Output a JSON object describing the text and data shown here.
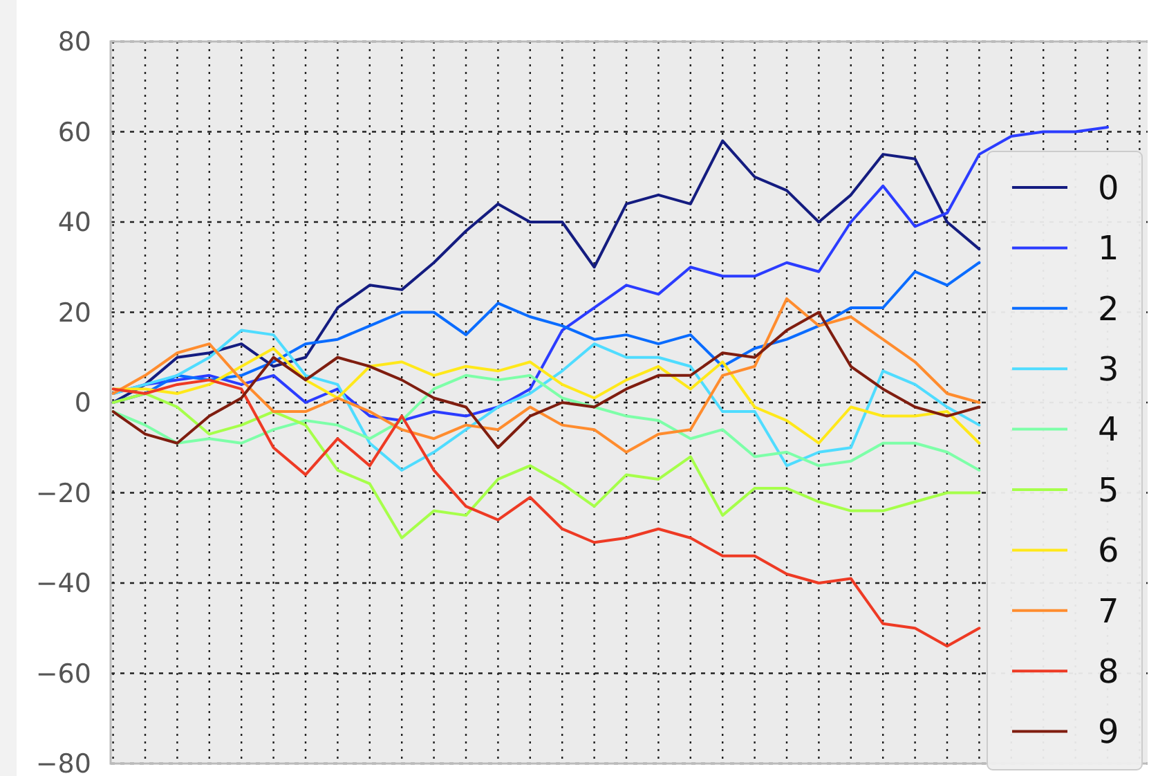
{
  "chart_data": {
    "type": "line",
    "ylim": [
      -80,
      80
    ],
    "yticks": [
      {
        "value": -80,
        "label": "−80"
      },
      {
        "value": -60,
        "label": "−60"
      },
      {
        "value": -40,
        "label": "−40"
      },
      {
        "value": -20,
        "label": "−20"
      },
      0,
      20,
      40,
      60,
      80
    ],
    "categories": [
      null,
      null,
      null,
      null,
      null,
      null,
      null,
      null,
      null,
      null,
      null,
      null,
      null,
      null,
      null,
      null,
      null,
      null,
      null,
      null,
      null,
      null,
      null,
      null,
      null,
      null,
      null,
      null,
      null,
      null,
      null,
      null,
      null
    ],
    "tick_labels": "y",
    "grid": true,
    "legend": "right",
    "line_style": "solid",
    "marker": "none",
    "series": [
      {
        "name": "0",
        "color": "#141c80",
        "values": [
          0,
          4,
          10,
          11,
          13,
          8,
          10,
          21,
          26,
          25,
          31,
          38,
          44,
          40,
          40,
          30,
          44,
          46,
          44,
          58,
          50,
          47,
          40,
          46,
          55,
          54,
          40,
          34,
          null,
          null,
          null,
          null,
          null
        ]
      },
      {
        "name": "1",
        "color": "#2b3cff",
        "values": [
          2,
          4,
          5,
          6,
          4,
          6,
          0,
          3,
          -3,
          -4,
          -2,
          -3,
          -1,
          3,
          16,
          21,
          26,
          24,
          30,
          28,
          28,
          31,
          29,
          40,
          48,
          39,
          42,
          55,
          59,
          60,
          60,
          61,
          null
        ]
      },
      {
        "name": "2",
        "color": "#0a6cff",
        "values": [
          0,
          2,
          6,
          5,
          6,
          9,
          13,
          14,
          17,
          20,
          20,
          15,
          22,
          19,
          17,
          14,
          15,
          13,
          15,
          8,
          12,
          14,
          17,
          21,
          21,
          29,
          26,
          31,
          null,
          null,
          null,
          null,
          null
        ]
      },
      {
        "name": "3",
        "color": "#4fdcff",
        "values": [
          2,
          4,
          6,
          10,
          16,
          15,
          6,
          4,
          -9,
          -15,
          -11,
          -6,
          -1,
          2,
          7,
          13,
          10,
          10,
          8,
          -2,
          -2,
          -14,
          -11,
          -10,
          7,
          4,
          -1,
          -5,
          null,
          null,
          null,
          null,
          null
        ]
      },
      {
        "name": "4",
        "color": "#7dffa8",
        "values": [
          -2,
          -5,
          -9,
          -8,
          -9,
          -6,
          -4,
          -5,
          -8,
          -4,
          3,
          6,
          5,
          6,
          1,
          -1,
          -3,
          -4,
          -8,
          -6,
          -12,
          -11,
          -14,
          -13,
          -9,
          -9,
          -11,
          -15,
          null,
          null,
          null,
          null,
          null
        ]
      },
      {
        "name": "5",
        "color": "#a6ff4a",
        "values": [
          0,
          2,
          -1,
          -7,
          -5,
          -2,
          -5,
          -15,
          -18,
          -30,
          -24,
          -25,
          -17,
          -14,
          -18,
          -23,
          -16,
          -17,
          -12,
          -25,
          -19,
          -19,
          -22,
          -24,
          -24,
          -22,
          -20,
          -20,
          null,
          null,
          null,
          null,
          null
        ]
      },
      {
        "name": "6",
        "color": "#ffe81a",
        "values": [
          3,
          3,
          2,
          4,
          8,
          12,
          5,
          1,
          8,
          9,
          6,
          8,
          7,
          9,
          4,
          1,
          5,
          8,
          3,
          9,
          -1,
          -4,
          -9,
          -1,
          -3,
          -3,
          -2,
          -9,
          null,
          null,
          null,
          null,
          null
        ]
      },
      {
        "name": "7",
        "color": "#ff8c2e",
        "values": [
          2,
          6,
          11,
          13,
          5,
          -2,
          -2,
          1,
          -2,
          -6,
          -8,
          -5,
          -6,
          -1,
          -5,
          -6,
          -11,
          -7,
          -6,
          6,
          8,
          23,
          17,
          19,
          14,
          9,
          2,
          0,
          null,
          null,
          null,
          null,
          null
        ]
      },
      {
        "name": "8",
        "color": "#ee3a24",
        "values": [
          3,
          2,
          4,
          5,
          3,
          -10,
          -16,
          -8,
          -14,
          -3,
          -15,
          -23,
          -26,
          -21,
          -28,
          -31,
          -30,
          -28,
          -30,
          -34,
          -34,
          -38,
          -40,
          -39,
          -49,
          -50,
          -54,
          -50,
          null,
          null,
          null,
          null,
          null
        ]
      },
      {
        "name": "9",
        "color": "#7f1d0f",
        "values": [
          -2,
          -7,
          -9,
          -3,
          1,
          10,
          5,
          10,
          8,
          5,
          1,
          -1,
          -10,
          -3,
          0,
          -1,
          3,
          6,
          6,
          11,
          10,
          16,
          20,
          8,
          3,
          -1,
          -3,
          -1,
          null,
          null,
          null,
          null,
          null
        ]
      }
    ]
  }
}
